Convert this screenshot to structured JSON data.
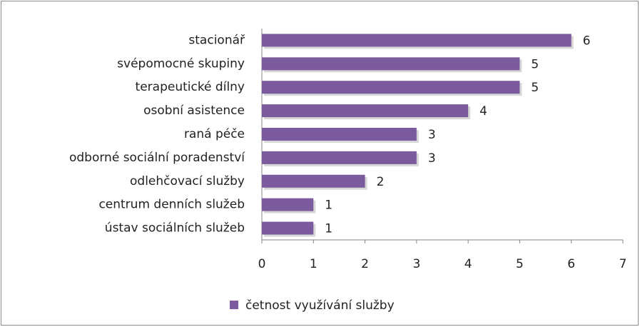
{
  "chart_data": {
    "type": "bar",
    "orientation": "horizontal",
    "categories": [
      "stacionář",
      "svépomocné skupiny",
      "terapeutické dílny",
      "osobní asistence",
      "raná péče",
      "odborné sociální poradenství",
      "odlehčovací služby",
      "centrum denních služeb",
      "ústav sociálních služeb"
    ],
    "series": [
      {
        "name": "četnost využívání služby",
        "color": "#7b5a9e",
        "values": [
          6,
          5,
          5,
          4,
          3,
          3,
          2,
          1,
          1
        ]
      }
    ],
    "xlim": [
      0,
      7
    ],
    "xticks": [
      0,
      1,
      2,
      3,
      4,
      5,
      6,
      7
    ],
    "grid": false,
    "legend": "bottom"
  }
}
